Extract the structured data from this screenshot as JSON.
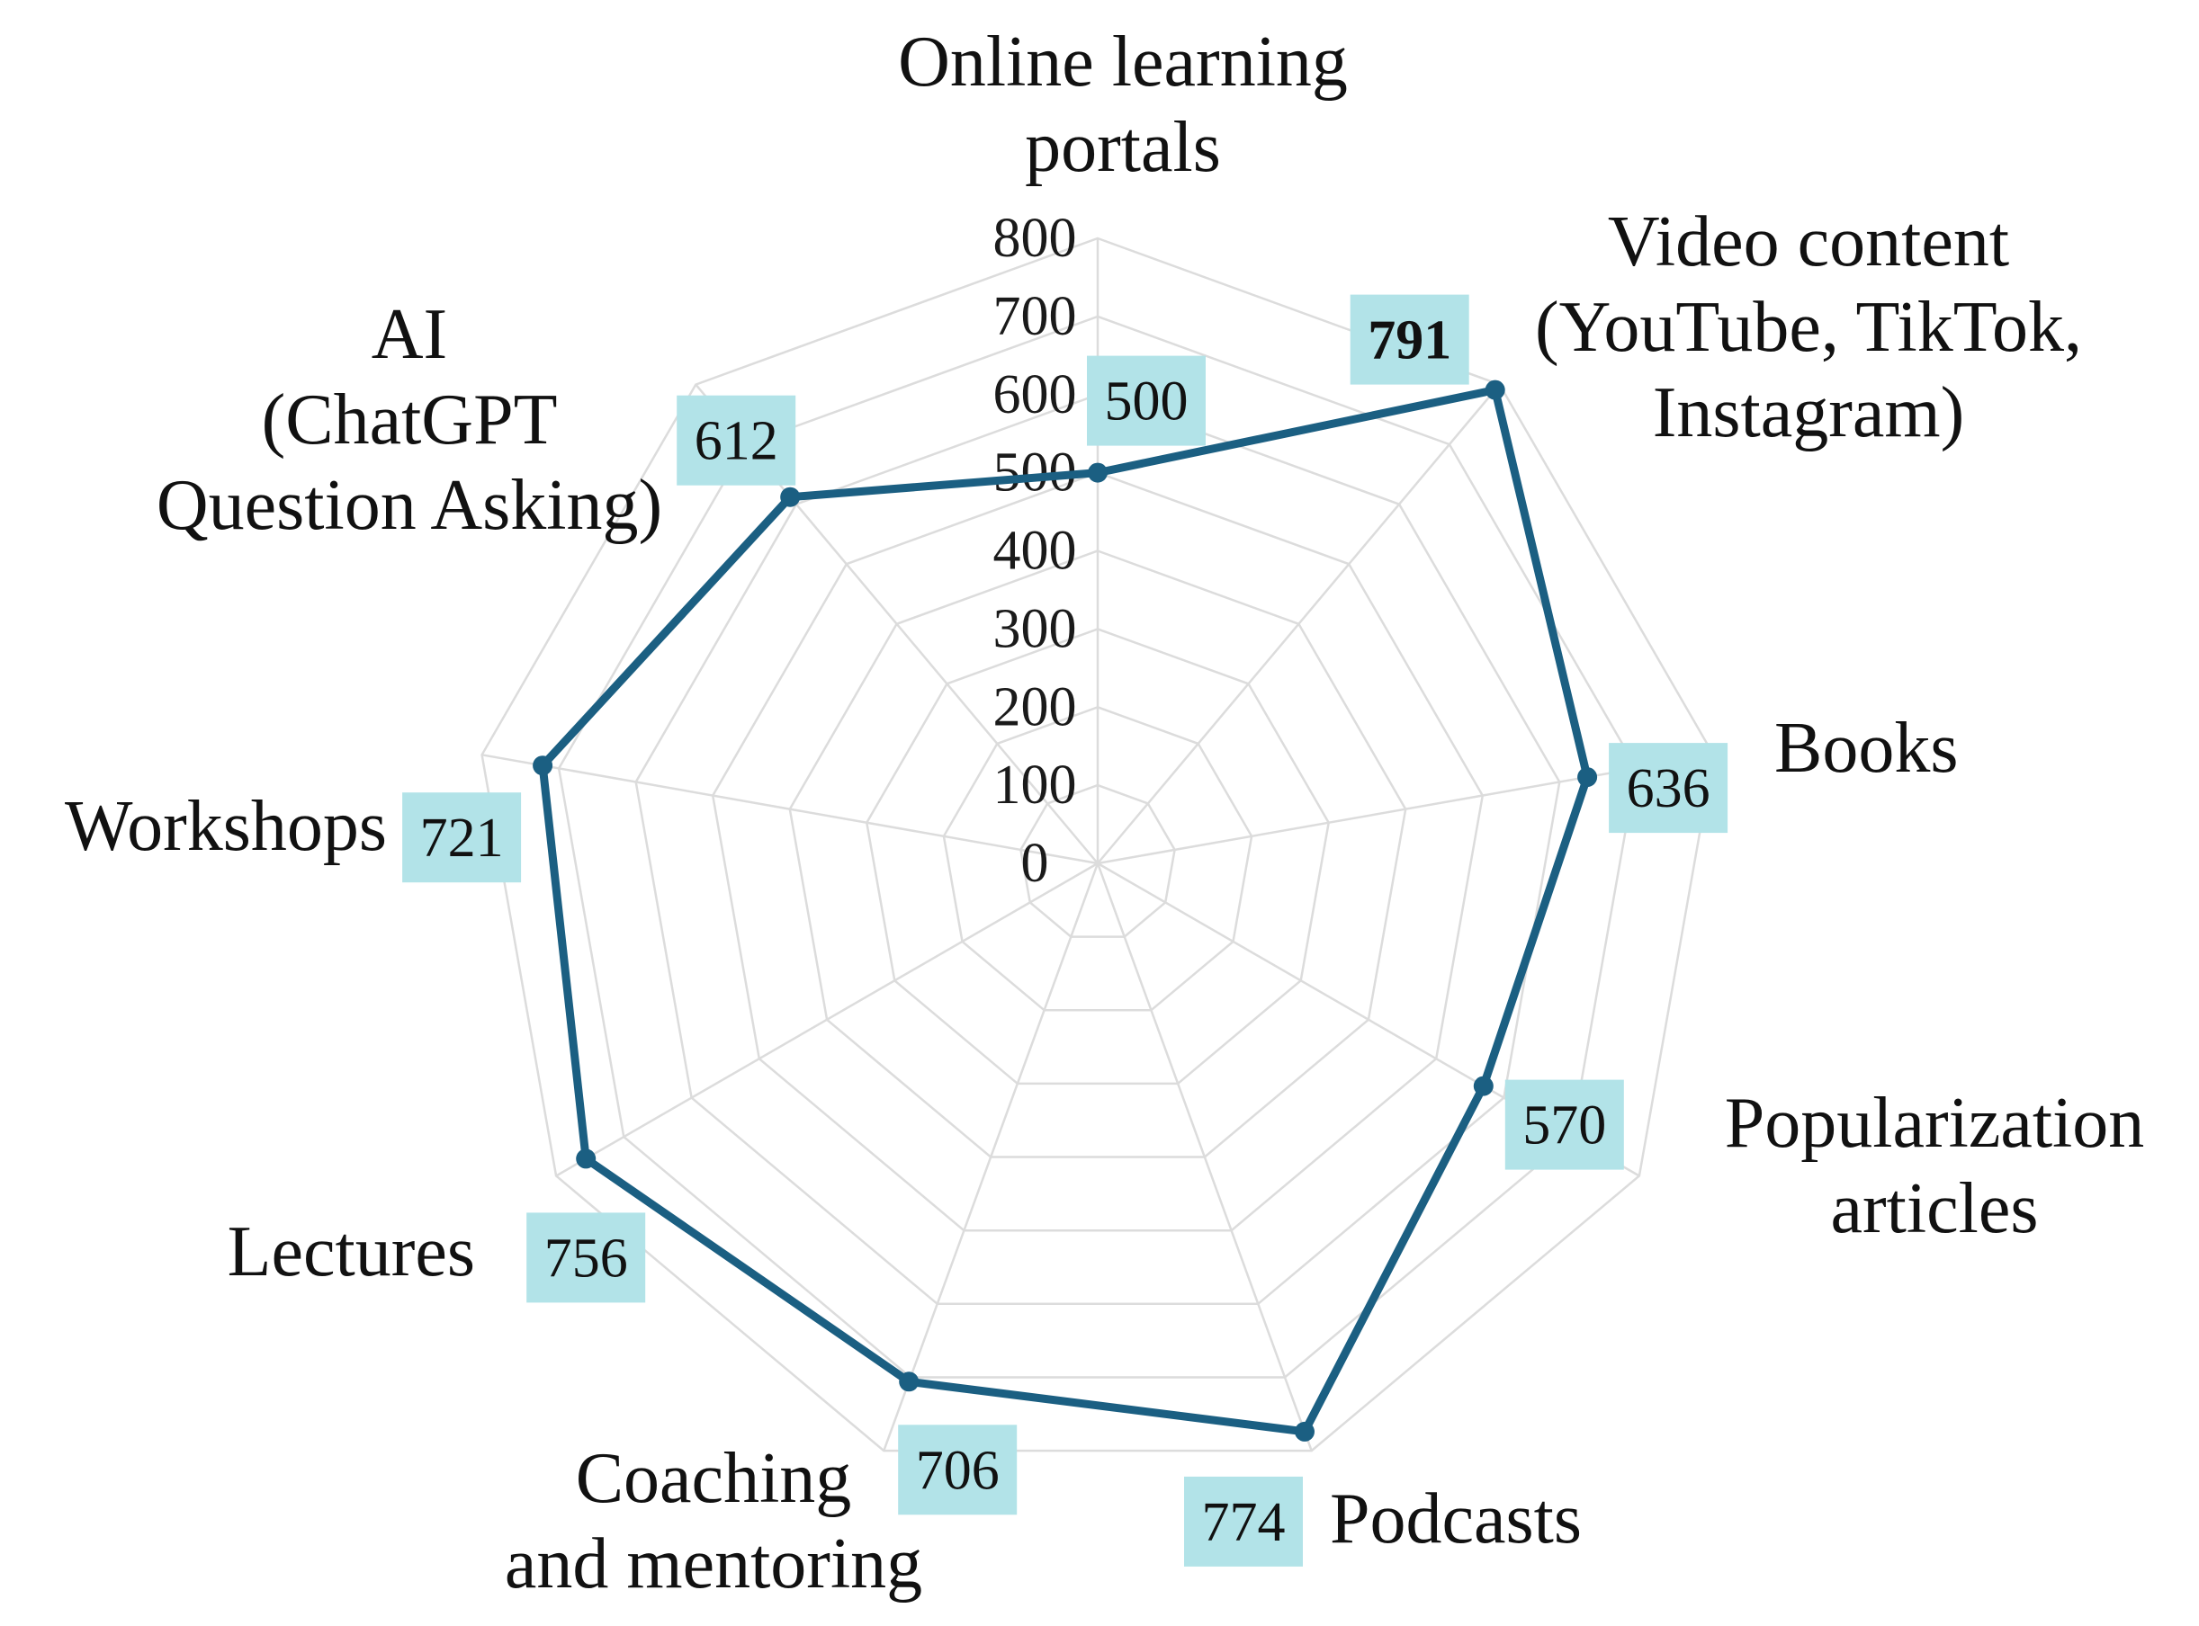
{
  "chart_data": {
    "type": "radar",
    "title": "",
    "categories": [
      "Online learning portals",
      "Video content (YouTube, TikTok, Instagram)",
      "Books",
      "Popularization articles",
      "Podcasts",
      "Coaching and mentoring",
      "Lectures",
      "Workshops",
      "AI (ChatGPT Question Asking)"
    ],
    "category_label_lines": [
      [
        "Online learning",
        "portals"
      ],
      [
        "Video content",
        "(YouTube, TikTok,",
        "Instagram)"
      ],
      [
        "Books"
      ],
      [
        "Popularization",
        "articles"
      ],
      [
        "Podcasts"
      ],
      [
        "Coaching",
        "and mentoring"
      ],
      [
        "Lectures"
      ],
      [
        "Workshops"
      ],
      [
        "AI",
        "(ChatGPT",
        "Question Asking)"
      ]
    ],
    "values": [
      500,
      791,
      636,
      570,
      774,
      706,
      756,
      721,
      612
    ],
    "value_labels": [
      "500",
      "791",
      "636",
      "570",
      "774",
      "706",
      "756",
      "721",
      "612"
    ],
    "highlighted_max_label": "791",
    "rlim": [
      0,
      800
    ],
    "r_ticks": [
      0,
      100,
      200,
      300,
      400,
      500,
      600,
      700,
      800
    ],
    "r_tick_labels": [
      "0",
      "100",
      "200",
      "300",
      "400",
      "500",
      "600",
      "700",
      "800"
    ],
    "grid": true,
    "legend": "none"
  },
  "colors": {
    "series_line": "#1b5f82",
    "label_box": "#b2e3e8",
    "grid": "#dcdcdc",
    "text": "#111111"
  }
}
